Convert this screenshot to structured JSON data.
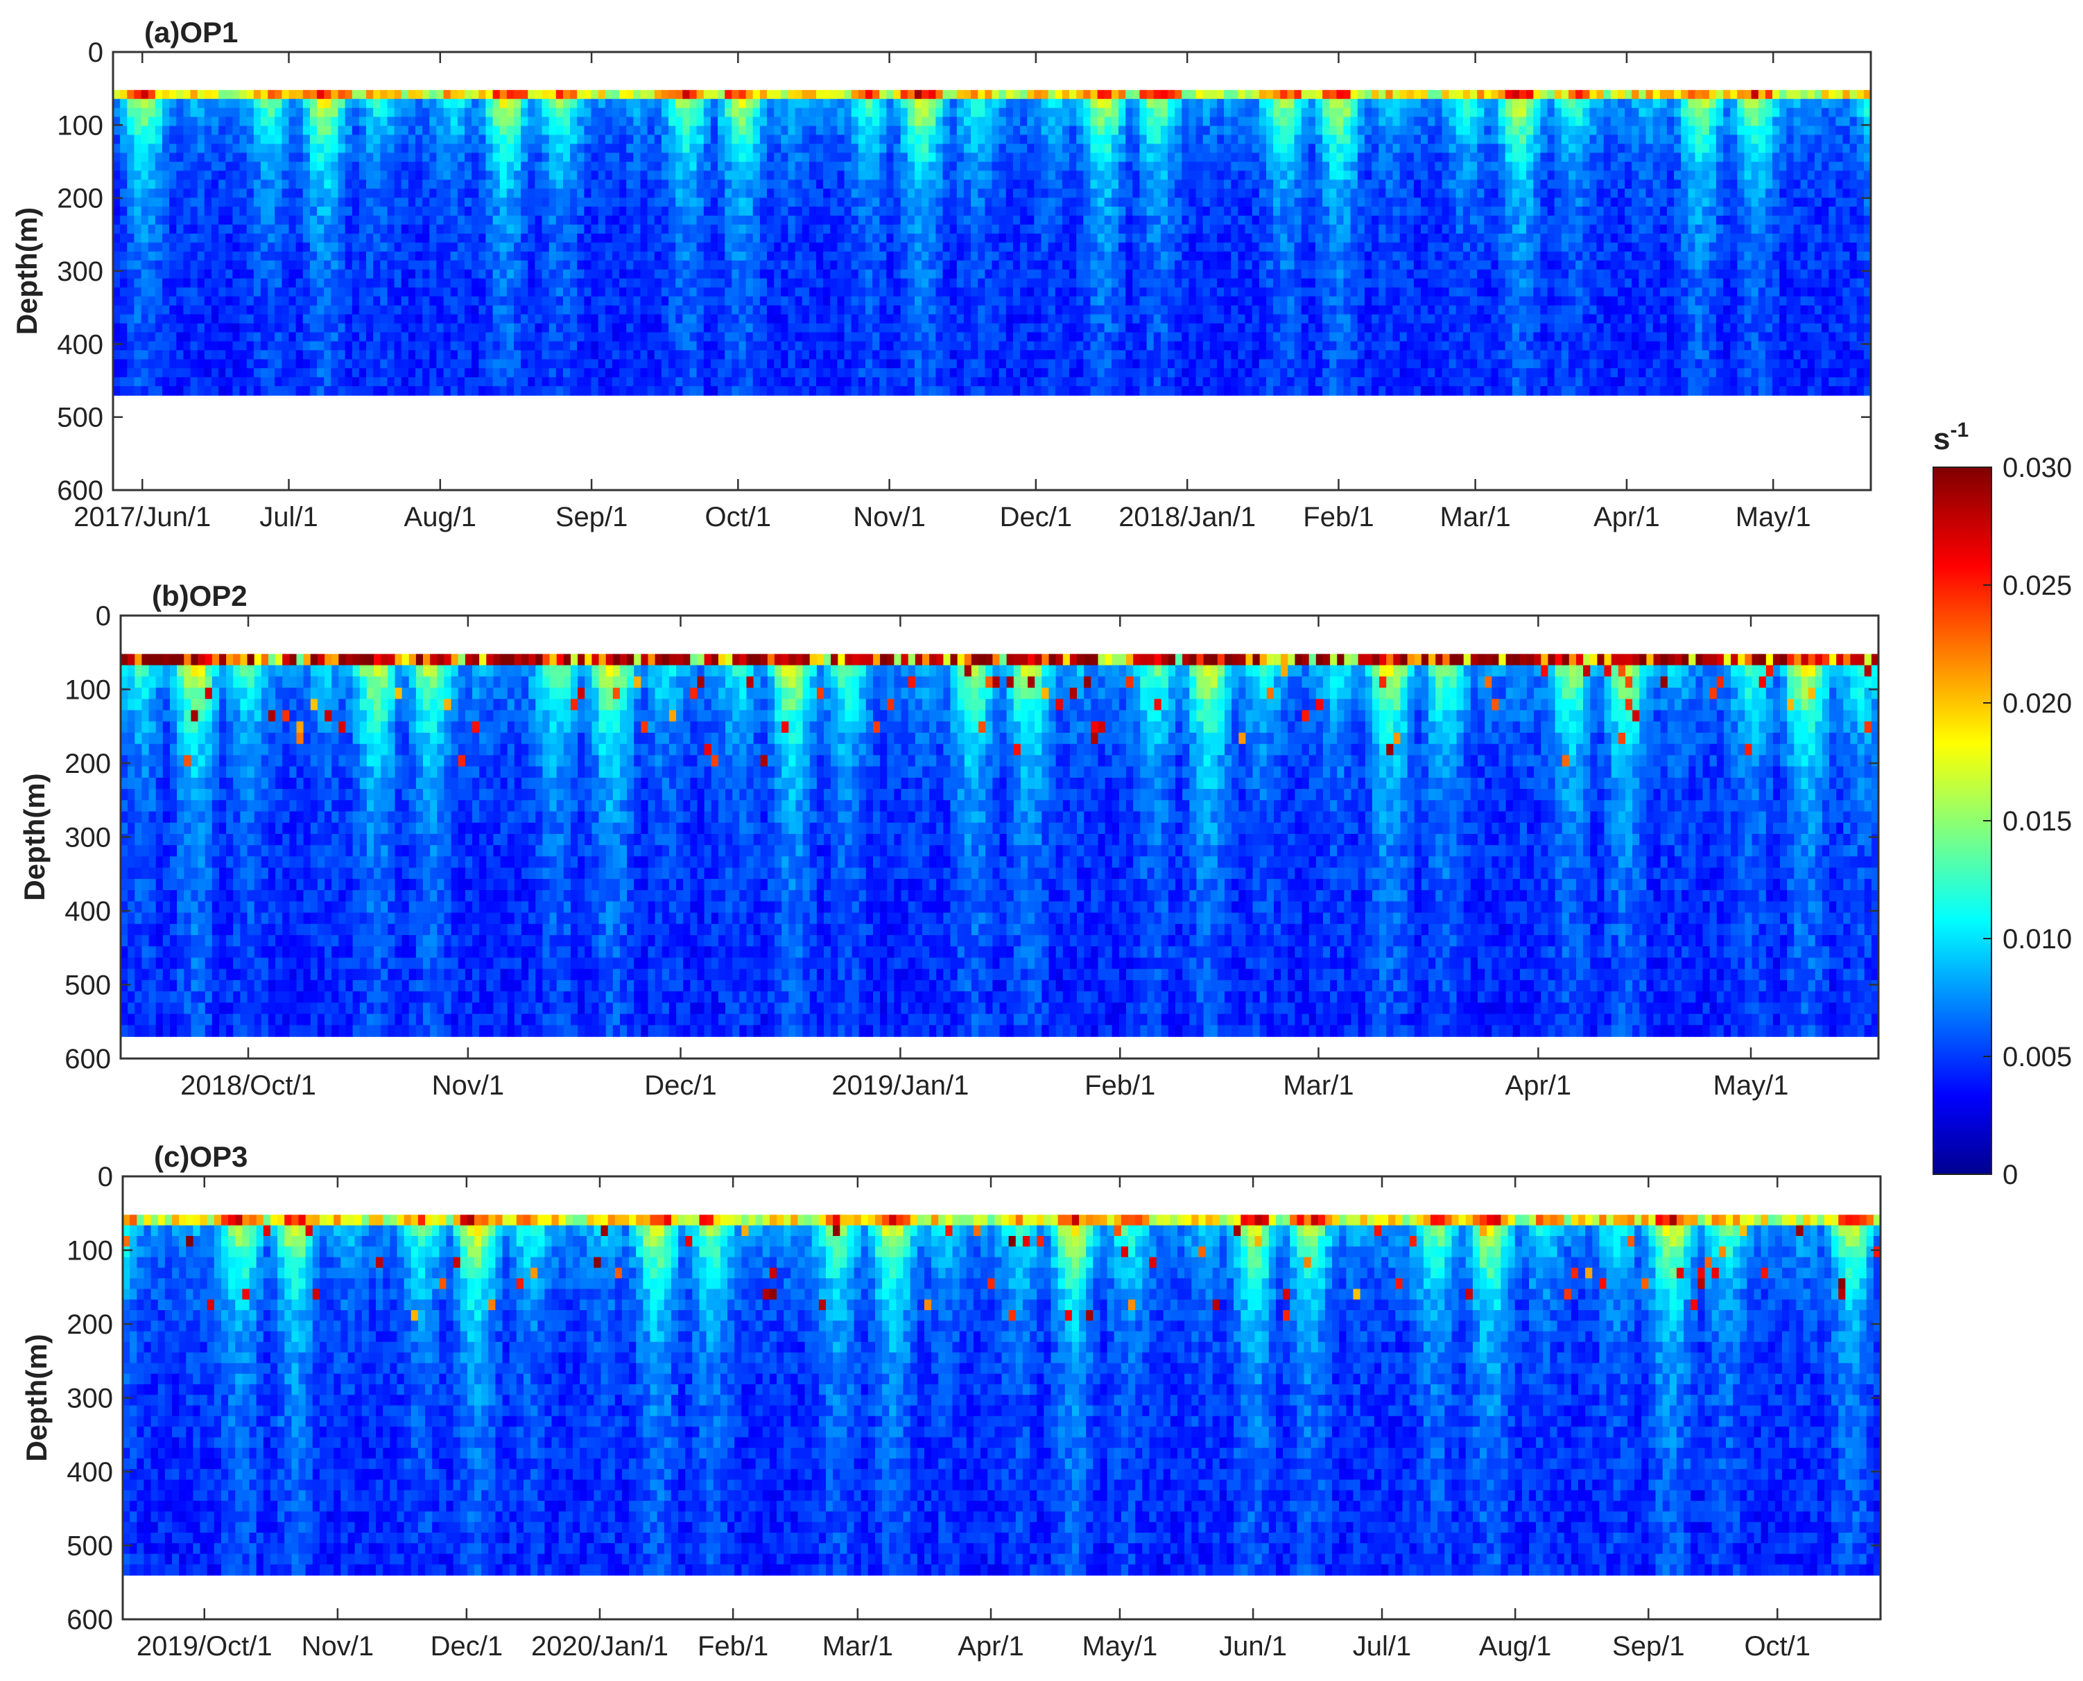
{
  "colorbar": {
    "unit_base": "s",
    "unit_exp": "-1",
    "range": [
      0,
      0.03
    ],
    "ticks": [
      {
        "value": 0,
        "label": "0"
      },
      {
        "value": 0.005,
        "label": "0.005"
      },
      {
        "value": 0.01,
        "label": "0.010"
      },
      {
        "value": 0.015,
        "label": "0.015"
      },
      {
        "value": 0.02,
        "label": "0.020"
      },
      {
        "value": 0.025,
        "label": "0.025"
      },
      {
        "value": 0.03,
        "label": "0.030"
      }
    ],
    "colormap": "jet"
  },
  "chart_data": [
    {
      "type": "heatmap",
      "title": "(a)OP1",
      "ylabel": "Depth(m)",
      "xlabel": "",
      "y_reversed": true,
      "ylim": [
        0,
        600
      ],
      "yticks": [
        0,
        100,
        200,
        300,
        400,
        500,
        600
      ],
      "xlim": [
        "2017-05-26",
        "2018-05-21"
      ],
      "xticks": [
        {
          "date": "2017-06-01",
          "label": "2017/Jun/1"
        },
        {
          "date": "2017-07-01",
          "label": "Jul/1"
        },
        {
          "date": "2017-08-01",
          "label": "Aug/1"
        },
        {
          "date": "2017-09-01",
          "label": "Sep/1"
        },
        {
          "date": "2017-10-01",
          "label": "Oct/1"
        },
        {
          "date": "2017-11-01",
          "label": "Nov/1"
        },
        {
          "date": "2017-12-01",
          "label": "Dec/1"
        },
        {
          "date": "2018-01-01",
          "label": "2018/Jan/1"
        },
        {
          "date": "2018-02-01",
          "label": "Feb/1"
        },
        {
          "date": "2018-03-01",
          "label": "Mar/1"
        },
        {
          "date": "2018-04-01",
          "label": "Apr/1"
        },
        {
          "date": "2018-05-01",
          "label": "May/1"
        }
      ],
      "data_depth_range": [
        52,
        470
      ],
      "colorbar_units": "s^-1"
    },
    {
      "type": "heatmap",
      "title": "(b)OP2",
      "ylabel": "Depth(m)",
      "xlabel": "",
      "y_reversed": true,
      "ylim": [
        0,
        600
      ],
      "yticks": [
        0,
        100,
        200,
        300,
        400,
        500,
        600
      ],
      "xlim": [
        "2018-09-13",
        "2019-05-19"
      ],
      "xticks": [
        {
          "date": "2018-10-01",
          "label": "2018/Oct/1"
        },
        {
          "date": "2018-11-01",
          "label": "Nov/1"
        },
        {
          "date": "2018-12-01",
          "label": "Dec/1"
        },
        {
          "date": "2019-01-01",
          "label": "2019/Jan/1"
        },
        {
          "date": "2019-02-01",
          "label": "Feb/1"
        },
        {
          "date": "2019-03-01",
          "label": "Mar/1"
        },
        {
          "date": "2019-04-01",
          "label": "Apr/1"
        },
        {
          "date": "2019-05-01",
          "label": "May/1"
        }
      ],
      "data_depth_range": [
        52,
        570
      ],
      "colorbar_units": "s^-1"
    },
    {
      "type": "heatmap",
      "title": "(c)OP3",
      "ylabel": "Depth(m)",
      "xlabel": "",
      "y_reversed": true,
      "ylim": [
        0,
        600
      ],
      "yticks": [
        0,
        100,
        200,
        300,
        400,
        500,
        600
      ],
      "xlim": [
        "2019-09-12",
        "2020-10-25"
      ],
      "xticks": [
        {
          "date": "2019-10-01",
          "label": "2019/Oct/1"
        },
        {
          "date": "2019-11-01",
          "label": "Nov/1"
        },
        {
          "date": "2019-12-01",
          "label": "Dec/1"
        },
        {
          "date": "2020-01-01",
          "label": "2020/Jan/1"
        },
        {
          "date": "2020-02-01",
          "label": "Feb/1"
        },
        {
          "date": "2020-03-01",
          "label": "Mar/1"
        },
        {
          "date": "2020-04-01",
          "label": "Apr/1"
        },
        {
          "date": "2020-05-01",
          "label": "May/1"
        },
        {
          "date": "2020-06-01",
          "label": "Jun/1"
        },
        {
          "date": "2020-07-01",
          "label": "Jul/1"
        },
        {
          "date": "2020-08-01",
          "label": "Aug/1"
        },
        {
          "date": "2020-09-01",
          "label": "Sep/1"
        },
        {
          "date": "2020-10-01",
          "label": "Oct/1"
        }
      ],
      "data_depth_range": [
        52,
        540
      ],
      "colorbar_units": "s^-1"
    }
  ]
}
